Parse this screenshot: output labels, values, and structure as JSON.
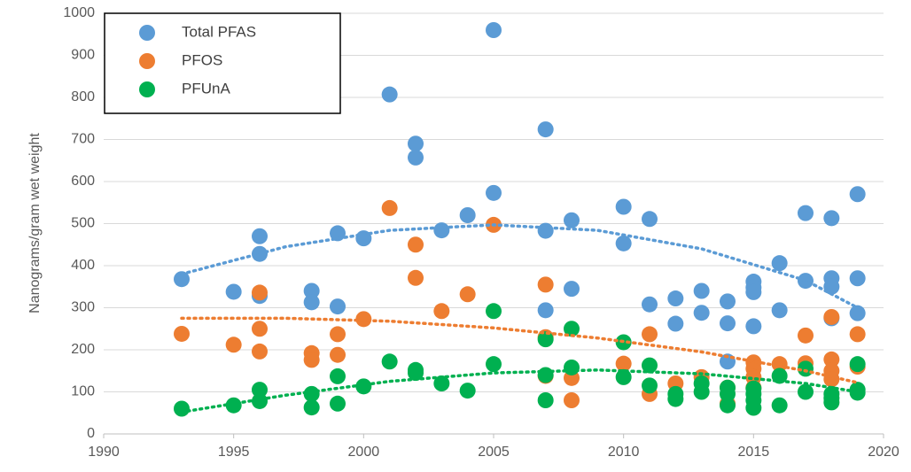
{
  "chart_data": {
    "type": "scatter",
    "ylabel": "Nanograms/gram wet weight",
    "xlim": [
      1990,
      2020
    ],
    "xticks": [
      1990,
      1995,
      2000,
      2005,
      2010,
      2015,
      2020
    ],
    "ylim": [
      0,
      1000
    ],
    "yticks": [
      0,
      100,
      200,
      300,
      400,
      500,
      600,
      700,
      800,
      900,
      1000
    ],
    "grid": true,
    "legend": "upper left",
    "series": [
      {
        "name": "Total PFAS",
        "color": "#5b9bd5",
        "x": [
          1993,
          1995,
          1996,
          1996,
          1996,
          1998,
          1998,
          1999,
          1999,
          2000,
          2001,
          2002,
          2002,
          2003,
          2004,
          2005,
          2005,
          2007,
          2007,
          2007,
          2008,
          2008,
          2010,
          2010,
          2011,
          2011,
          2012,
          2012,
          2013,
          2013,
          2014,
          2014,
          2014,
          2015,
          2015,
          2015,
          2015,
          2016,
          2016,
          2017,
          2017,
          2018,
          2018,
          2018,
          2018,
          2019,
          2019,
          2019
        ],
        "values": [
          368,
          338,
          470,
          428,
          328,
          340,
          313,
          477,
          303,
          465,
          807,
          690,
          657,
          484,
          520,
          960,
          573,
          724,
          483,
          294,
          508,
          345,
          540,
          453,
          511,
          308,
          322,
          262,
          340,
          288,
          315,
          263,
          172,
          362,
          348,
          337,
          256,
          406,
          294,
          525,
          364,
          513,
          370,
          350,
          275,
          570,
          370,
          287
        ]
      },
      {
        "name": "PFOS",
        "color": "#ed7d31",
        "x": [
          1993,
          1995,
          1996,
          1996,
          1996,
          1998,
          1998,
          1999,
          1999,
          2000,
          2001,
          2002,
          2002,
          2003,
          2004,
          2005,
          2007,
          2007,
          2007,
          2008,
          2008,
          2010,
          2011,
          2011,
          2012,
          2013,
          2014,
          2014,
          2015,
          2015,
          2015,
          2015,
          2016,
          2017,
          2017,
          2018,
          2018,
          2018,
          2018,
          2019,
          2019
        ],
        "values": [
          238,
          212,
          336,
          250,
          196,
          192,
          176,
          237,
          188,
          273,
          537,
          450,
          371,
          292,
          332,
          497,
          355,
          230,
          138,
          133,
          80,
          167,
          237,
          95,
          120,
          135,
          110,
          72,
          170,
          155,
          135,
          110,
          166,
          234,
          168,
          278,
          177,
          150,
          130,
          237,
          160
        ]
      },
      {
        "name": "PFUnA",
        "color": "#00b050",
        "x": [
          1993,
          1995,
          1996,
          1996,
          1998,
          1998,
          1999,
          1999,
          2000,
          2001,
          2002,
          2002,
          2003,
          2004,
          2005,
          2005,
          2007,
          2007,
          2007,
          2008,
          2008,
          2010,
          2010,
          2011,
          2011,
          2012,
          2012,
          2013,
          2013,
          2014,
          2014,
          2014,
          2015,
          2015,
          2015,
          2015,
          2016,
          2016,
          2017,
          2017,
          2018,
          2018,
          2018,
          2019,
          2019,
          2019
        ],
        "values": [
          60,
          68,
          105,
          78,
          95,
          63,
          137,
          72,
          113,
          172,
          152,
          145,
          120,
          103,
          292,
          166,
          225,
          140,
          80,
          250,
          158,
          218,
          135,
          163,
          115,
          95,
          83,
          120,
          100,
          110,
          95,
          68,
          108,
          95,
          80,
          62,
          138,
          68,
          155,
          100,
          95,
          85,
          75,
          166,
          105,
          98
        ]
      }
    ],
    "trendlines": [
      {
        "color": "#5b9bd5",
        "x": [
          1993,
          1997,
          2001,
          2005,
          2009,
          2013,
          2017,
          2019
        ],
        "values": [
          380,
          445,
          484,
          497,
          484,
          440,
          365,
          300
        ]
      },
      {
        "color": "#ed7d31",
        "x": [
          1993,
          1997,
          2001,
          2005,
          2009,
          2013,
          2017,
          2019
        ],
        "values": [
          275,
          275,
          268,
          252,
          228,
          195,
          150,
          122
        ]
      },
      {
        "color": "#00b050",
        "x": [
          1993,
          1997,
          2001,
          2005,
          2009,
          2013,
          2017,
          2019
        ],
        "values": [
          52,
          92,
          125,
          145,
          152,
          143,
          120,
          100
        ]
      }
    ]
  }
}
